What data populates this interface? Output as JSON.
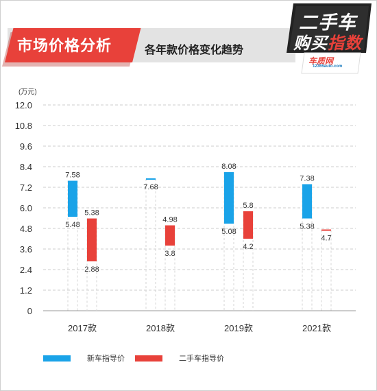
{
  "header": {
    "title": "市场价格分析",
    "subtitle": "各年款价格变化趋势"
  },
  "logo": {
    "line1": "二手车",
    "line2_white": "购买",
    "line2_red": "指数",
    "site": "车质网",
    "url": "12365auto.com"
  },
  "chart_data": {
    "type": "bar",
    "subtype": "floating range bar",
    "unit_label": "(万元)",
    "categories": [
      "2017款",
      "2018款",
      "2019款",
      "2021款"
    ],
    "y_ticks": [
      "12.0",
      "10.8",
      "9.6",
      "8.4",
      "7.2",
      "6.0",
      "4.8",
      "3.6",
      "2.4",
      "1.2",
      "0"
    ],
    "ylim": [
      0,
      12.0
    ],
    "grid": true,
    "legend_position": "bottom",
    "series": [
      {
        "name": "新车指导价",
        "color": "#1aa3e8",
        "values": [
          {
            "high": 7.58,
            "low": 5.48,
            "high_label": "7.58",
            "low_label": "5.48"
          },
          {
            "high": 7.68,
            "low": 7.68,
            "high_label": "",
            "low_label": "7.68"
          },
          {
            "high": 8.08,
            "low": 5.08,
            "high_label": "8.08",
            "low_label": "5.08"
          },
          {
            "high": 7.38,
            "low": 5.38,
            "high_label": "7.38",
            "low_label": "5.38"
          }
        ]
      },
      {
        "name": "二手车指导价",
        "color": "#e8413a",
        "values": [
          {
            "high": 5.38,
            "low": 2.88,
            "high_label": "5.38",
            "low_label": "2.88"
          },
          {
            "high": 4.98,
            "low": 3.8,
            "high_label": "4.98",
            "low_label": "3.8"
          },
          {
            "high": 5.8,
            "low": 4.2,
            "high_label": "5.8",
            "low_label": "4.2"
          },
          {
            "high": 4.7,
            "low": 4.7,
            "high_label": "",
            "low_label": "4.7"
          }
        ]
      }
    ]
  }
}
